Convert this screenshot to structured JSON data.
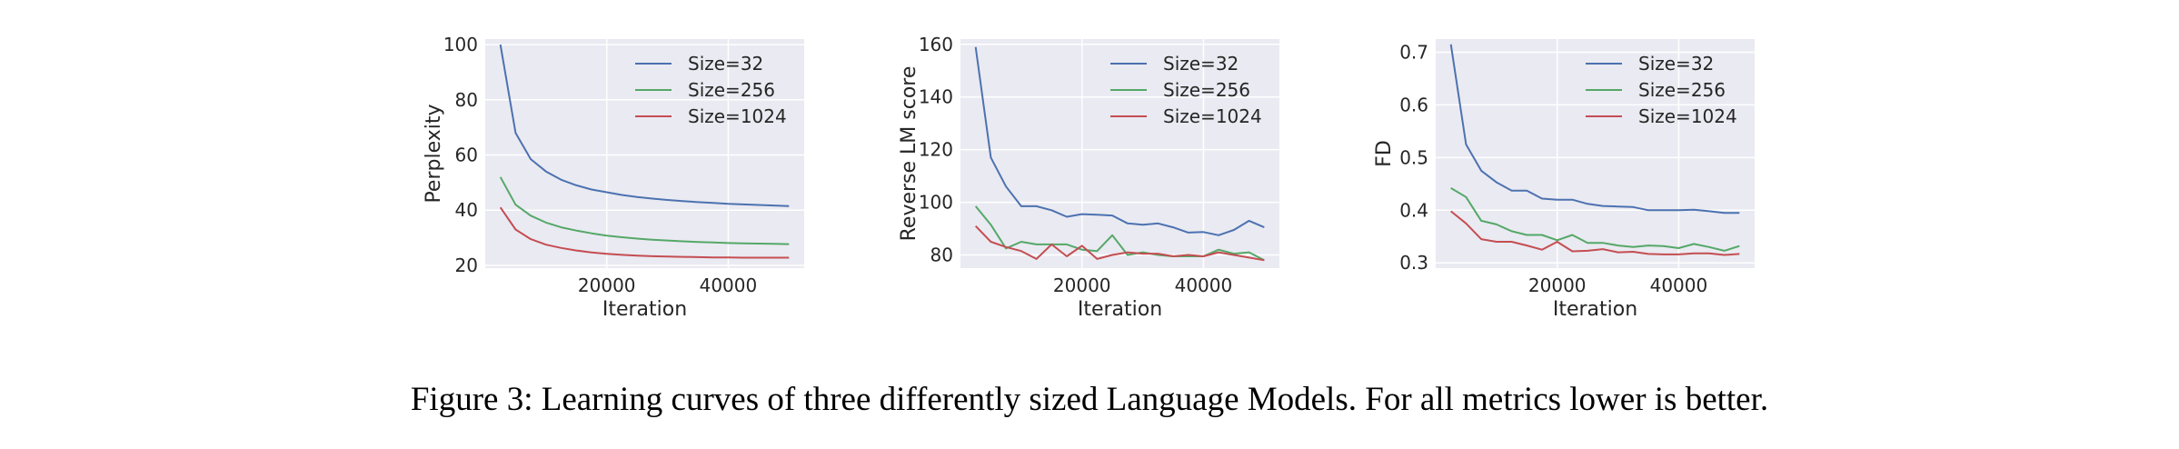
{
  "caption": "Figure 3: Learning curves of three differently sized Language Models. For all metrics lower is better.",
  "colors": {
    "Size=32": "#4c72b0",
    "Size=256": "#55a868",
    "Size=1024": "#c44e52",
    "plot_bg": "#eaeaf2",
    "grid": "#ffffff"
  },
  "chart_data": [
    {
      "type": "line",
      "title": "",
      "xlabel": "Iteration",
      "ylabel": "Perplexity",
      "xlim": [
        0,
        52500
      ],
      "ylim": [
        19,
        102
      ],
      "xticks": [
        20000,
        40000
      ],
      "yticks": [
        20,
        40,
        60,
        80,
        100
      ],
      "grid": true,
      "legend": "top-right",
      "x": [
        2500,
        5000,
        7500,
        10000,
        12500,
        15000,
        17500,
        20000,
        22500,
        25000,
        27500,
        30000,
        32500,
        35000,
        37500,
        40000,
        42500,
        45000,
        47500,
        50000
      ],
      "series": [
        {
          "name": "Size=32",
          "values": [
            100,
            68,
            58.5,
            54,
            51,
            49,
            47.5,
            46.5,
            45.5,
            44.8,
            44.2,
            43.7,
            43.3,
            42.9,
            42.6,
            42.3,
            42.1,
            41.9,
            41.7,
            41.5
          ]
        },
        {
          "name": "Size=256",
          "values": [
            52,
            42,
            38,
            35.5,
            33.8,
            32.6,
            31.6,
            30.8,
            30.2,
            29.7,
            29.3,
            29,
            28.7,
            28.5,
            28.3,
            28.1,
            28,
            27.9,
            27.8,
            27.7
          ]
        },
        {
          "name": "Size=1024",
          "values": [
            41,
            33,
            29.5,
            27.5,
            26.3,
            25.4,
            24.7,
            24.2,
            23.8,
            23.5,
            23.3,
            23.2,
            23.1,
            23,
            22.9,
            22.9,
            22.8,
            22.8,
            22.8,
            22.8
          ]
        }
      ]
    },
    {
      "type": "line",
      "title": "",
      "xlabel": "Iteration",
      "ylabel": "Reverse LM score",
      "xlim": [
        0,
        52500
      ],
      "ylim": [
        75,
        162
      ],
      "xticks": [
        20000,
        40000
      ],
      "yticks": [
        80,
        100,
        120,
        140,
        160
      ],
      "grid": true,
      "legend": "top-right",
      "x": [
        2500,
        5000,
        7500,
        10000,
        12500,
        15000,
        17500,
        20000,
        22500,
        25000,
        27500,
        30000,
        32500,
        35000,
        37500,
        40000,
        42500,
        45000,
        47500,
        50000
      ],
      "series": [
        {
          "name": "Size=32",
          "values": [
            159,
            117,
            106,
            98.5,
            98.5,
            97,
            94.5,
            95.5,
            95.3,
            95,
            92,
            91.5,
            92,
            90.5,
            88.5,
            88.7,
            87.5,
            89.5,
            93,
            90.5
          ]
        },
        {
          "name": "Size=256",
          "values": [
            98.5,
            91.5,
            82.5,
            85,
            84,
            84,
            84,
            82,
            81.5,
            87.5,
            80,
            81,
            80,
            79.5,
            79.5,
            79.5,
            82,
            80.5,
            81,
            78
          ]
        },
        {
          "name": "Size=1024",
          "values": [
            91,
            85,
            83,
            81.5,
            78.5,
            84,
            79.5,
            83.5,
            78.5,
            80,
            81,
            80.5,
            80.5,
            79.5,
            80,
            79.5,
            81,
            80,
            79,
            78
          ]
        }
      ]
    },
    {
      "type": "line",
      "title": "",
      "xlabel": "Iteration",
      "ylabel": "FD",
      "xlim": [
        0,
        52500
      ],
      "ylim": [
        0.29,
        0.725
      ],
      "xticks": [
        20000,
        40000
      ],
      "yticks": [
        0.3,
        0.4,
        0.5,
        0.6,
        0.7
      ],
      "grid": true,
      "legend": "top-right",
      "x": [
        2500,
        5000,
        7500,
        10000,
        12500,
        15000,
        17500,
        20000,
        22500,
        25000,
        27500,
        30000,
        32500,
        35000,
        37500,
        40000,
        42500,
        45000,
        47500,
        50000
      ],
      "series": [
        {
          "name": "Size=32",
          "values": [
            0.715,
            0.525,
            0.475,
            0.453,
            0.437,
            0.437,
            0.422,
            0.42,
            0.42,
            0.412,
            0.408,
            0.407,
            0.406,
            0.4,
            0.4,
            0.4,
            0.401,
            0.398,
            0.395,
            0.395
          ]
        },
        {
          "name": "Size=256",
          "values": [
            0.442,
            0.425,
            0.38,
            0.373,
            0.36,
            0.353,
            0.353,
            0.343,
            0.353,
            0.338,
            0.338,
            0.333,
            0.33,
            0.333,
            0.332,
            0.328,
            0.336,
            0.33,
            0.323,
            0.332
          ]
        },
        {
          "name": "Size=1024",
          "values": [
            0.398,
            0.375,
            0.345,
            0.34,
            0.34,
            0.333,
            0.325,
            0.34,
            0.322,
            0.323,
            0.326,
            0.32,
            0.321,
            0.317,
            0.316,
            0.316,
            0.318,
            0.318,
            0.315,
            0.317
          ]
        }
      ]
    }
  ]
}
